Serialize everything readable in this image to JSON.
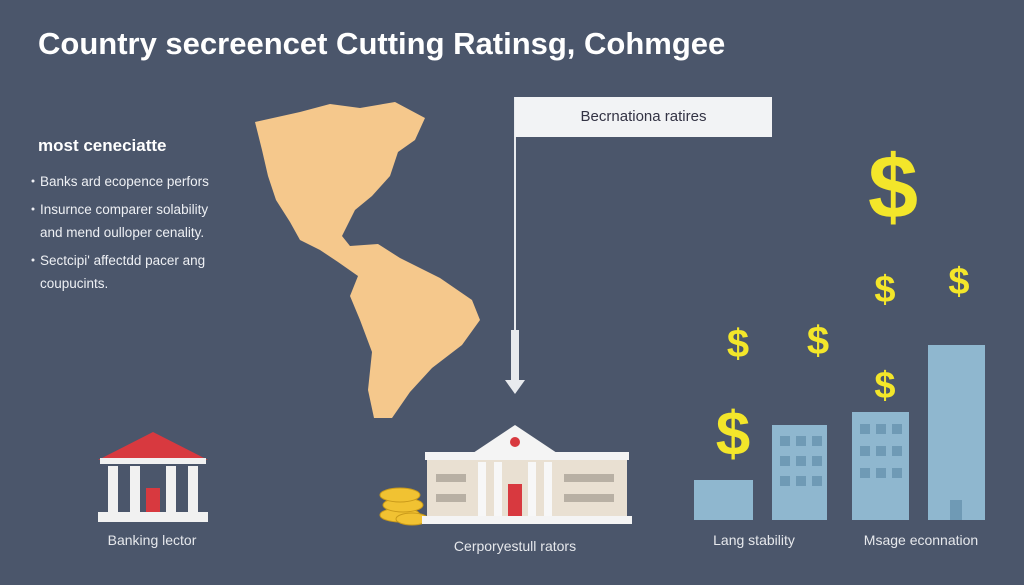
{
  "header": {
    "title": "Country secreencet Cutting Ratinsg, Cohmgee"
  },
  "sidebar": {
    "heading": "most ceneciatte",
    "items": [
      "Banks ard ecopence perfors",
      "Insurnce comparer solability and mend oulloper cenality.",
      "Sectcipi' affectdd pacer ang coupucints."
    ]
  },
  "callout": {
    "label": "Becrnationa ratires"
  },
  "currency_symbol": "$",
  "labels": [
    "Banking lector",
    "Cerporyestull rators",
    "Lang stability",
    "Msage econnation"
  ]
}
